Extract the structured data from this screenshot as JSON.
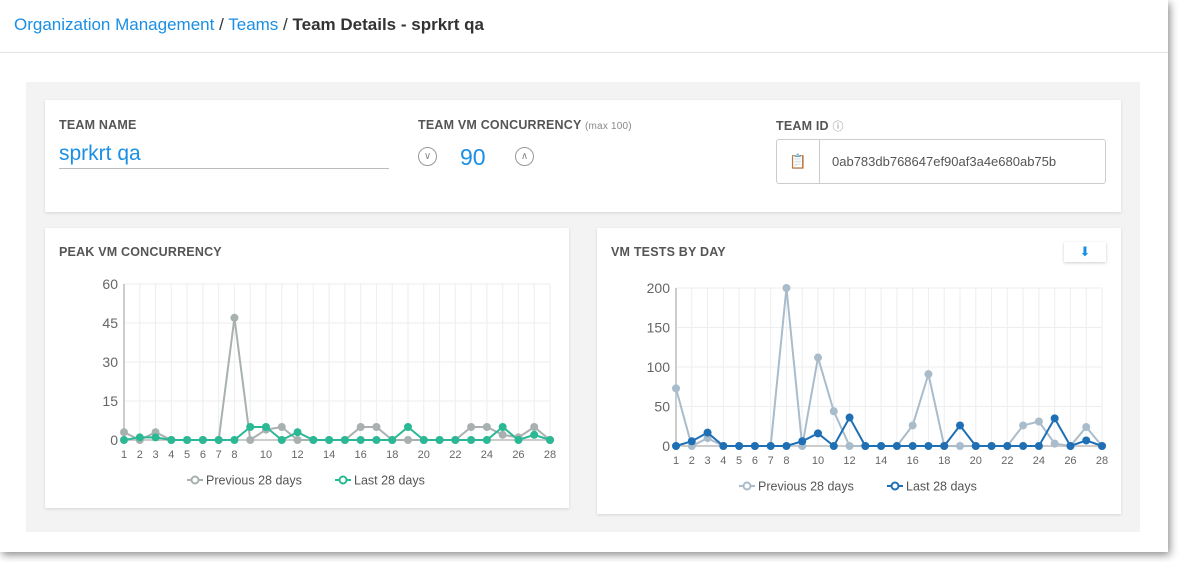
{
  "breadcrumb": {
    "org": "Organization Management",
    "teams": "Teams",
    "sep": "/",
    "current": "Team Details - sprkrt qa"
  },
  "team": {
    "name_label": "TEAM NAME",
    "name": "sprkrt qa",
    "concurrency_label": "TEAM VM CONCURRENCY",
    "concurrency_hint": "(max 100)",
    "concurrency": "90",
    "id_label": "TEAM ID",
    "id": "0ab783db768647ef90af3a4e680ab75b"
  },
  "colors": {
    "accent": "#1a8fe3",
    "prev": "#a8b1b0",
    "last_peak": "#2bb894",
    "prev_tests": "#a9bccb",
    "last_tests": "#1f6fb5"
  },
  "chart_data": [
    {
      "type": "line",
      "title": "PEAK VM CONCURRENCY",
      "ylim": [
        0,
        60
      ],
      "yticks": [
        0,
        15,
        30,
        45,
        60
      ],
      "x": [
        1,
        2,
        3,
        4,
        5,
        6,
        7,
        8,
        9,
        10,
        11,
        12,
        13,
        14,
        15,
        16,
        17,
        18,
        19,
        20,
        21,
        22,
        23,
        24,
        25,
        26,
        27,
        28
      ],
      "xtick_labels": [
        1,
        2,
        3,
        4,
        5,
        6,
        7,
        8,
        10,
        12,
        14,
        16,
        18,
        20,
        22,
        24,
        26,
        28
      ],
      "grid": true,
      "legend": "bottom",
      "series": [
        {
          "name": "Previous 28 days",
          "values": [
            3,
            0,
            3,
            0,
            0,
            0,
            0,
            47,
            0,
            4,
            5,
            0,
            0,
            0,
            0,
            5,
            5,
            0,
            0,
            0,
            0,
            0,
            5,
            5,
            2,
            1,
            5,
            0
          ]
        },
        {
          "name": "Last 28 days",
          "values": [
            0,
            1,
            1,
            0,
            0,
            0,
            0,
            0,
            5,
            5,
            0,
            3,
            0,
            0,
            0,
            0,
            0,
            0,
            5,
            0,
            0,
            0,
            0,
            0,
            5,
            0,
            2,
            0
          ]
        }
      ]
    },
    {
      "type": "line",
      "title": "VM TESTS BY DAY",
      "ylim": [
        0,
        200
      ],
      "yticks": [
        0,
        50,
        100,
        150,
        200
      ],
      "x": [
        1,
        2,
        3,
        4,
        5,
        6,
        7,
        8,
        9,
        10,
        11,
        12,
        13,
        14,
        15,
        16,
        17,
        18,
        19,
        20,
        21,
        22,
        23,
        24,
        25,
        26,
        27,
        28
      ],
      "xtick_labels": [
        1,
        2,
        3,
        4,
        5,
        6,
        7,
        8,
        10,
        12,
        14,
        16,
        18,
        20,
        22,
        24,
        26,
        28
      ],
      "grid": true,
      "legend": "bottom",
      "series": [
        {
          "name": "Previous 28 days",
          "values": [
            73,
            0,
            10,
            0,
            0,
            0,
            0,
            200,
            0,
            112,
            44,
            0,
            0,
            0,
            0,
            26,
            91,
            0,
            0,
            0,
            0,
            0,
            26,
            31,
            3,
            0,
            24,
            0
          ]
        },
        {
          "name": "Last 28 days",
          "values": [
            0,
            6,
            17,
            0,
            0,
            0,
            0,
            0,
            6,
            16,
            0,
            36,
            0,
            0,
            0,
            0,
            0,
            0,
            26,
            0,
            0,
            0,
            0,
            0,
            35,
            0,
            7,
            0
          ]
        }
      ]
    }
  ]
}
